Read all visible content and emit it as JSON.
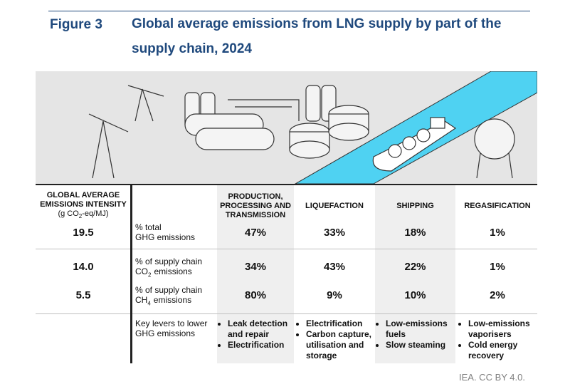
{
  "header": {
    "figure": "Figure 3",
    "title": "Global average emissions from LNG supply by part of the supply chain, 2024"
  },
  "table": {
    "intensity_header": [
      "GLOBAL AVERAGE EMISSIONS INTENSITY",
      "(g CO",
      "2",
      "-eq/MJ)"
    ],
    "columns": [
      "PRODUCTION, PROCESSING AND TRANSMISSION",
      "LIQUEFACTION",
      "SHIPPING",
      "REGASIFICATION"
    ],
    "rows": [
      {
        "intensity": "19.5",
        "label": [
          "% total",
          "GHG emissions"
        ],
        "cells": [
          "47%",
          "33%",
          "18%",
          "1%"
        ]
      },
      {
        "intensity": "14.0",
        "label": [
          "% of supply chain",
          "CO",
          "2",
          "emissions"
        ],
        "cells": [
          "34%",
          "43%",
          "22%",
          "1%"
        ]
      },
      {
        "intensity": "5.5",
        "label": [
          "% of supply chain",
          "CH",
          "4",
          "emissions"
        ],
        "cells": [
          "80%",
          "9%",
          "10%",
          "2%"
        ]
      }
    ],
    "levers": {
      "label": "Key levers to lower GHG emissions",
      "items": [
        [
          "Leak detection and repair",
          "Electrification"
        ],
        [
          "Electrification",
          "Carbon capture, utilisation and storage"
        ],
        [
          "Low-emissions fuels",
          "Slow steaming"
        ],
        [
          "Low-emissions vaporisers",
          "Cold energy recovery"
        ]
      ]
    }
  },
  "footer": "IEA. CC BY 4.0."
}
